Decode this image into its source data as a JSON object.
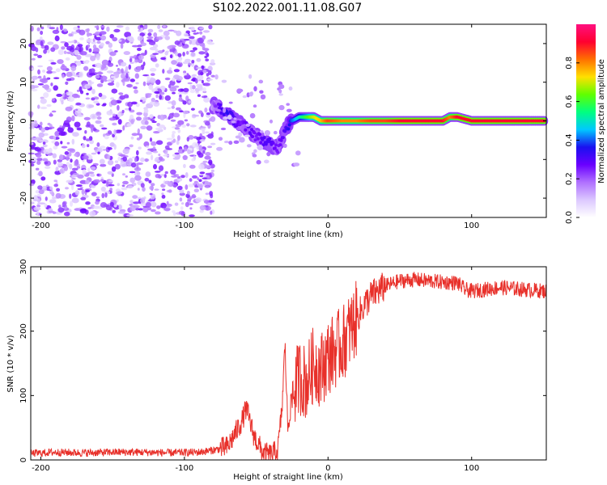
{
  "title": "S102.2022.001.11.08.G07",
  "chart_data": [
    {
      "type": "heatmap",
      "xlabel": "Height of straight line (km)",
      "ylabel": "Frequency (Hz)",
      "xlim": [
        -207,
        152
      ],
      "ylim": [
        -25,
        25
      ],
      "xticks": [
        -200,
        -100,
        0,
        100
      ],
      "yticks": [
        -20,
        -10,
        0,
        10,
        20
      ],
      "grid": false,
      "colorbar": {
        "label": "Normalized spectral amplitude",
        "range": [
          0.0,
          1.0
        ],
        "ticks": [
          "0.0",
          "0.2",
          "0.4",
          "0.6",
          "0.8"
        ],
        "colormap": [
          "#ffffff",
          "#dcc8ff",
          "#b070ff",
          "#6a00ff",
          "#1a10f0",
          "#00c8ff",
          "#00ff80",
          "#60ff00",
          "#ffe000",
          "#ff7000",
          "#ff0030",
          "#ff1080"
        ]
      },
      "ridge": {
        "x": [
          -80,
          -75,
          -70,
          -65,
          -60,
          -55,
          -50,
          -45,
          -40,
          -35,
          -30,
          -25,
          -20,
          -15,
          -10,
          -5,
          0,
          10,
          20,
          30,
          40,
          50,
          60,
          70,
          80,
          85,
          90,
          100,
          110,
          120,
          130,
          140,
          152
        ],
        "frequency": [
          4,
          3,
          2,
          0,
          -1,
          -2,
          -4,
          -5,
          -6,
          -7,
          -2,
          0,
          1,
          1,
          1,
          0,
          0,
          0,
          0,
          0,
          0,
          0,
          0,
          0,
          0,
          1,
          1,
          0,
          0,
          0,
          0,
          0,
          0
        ],
        "amplitude": [
          0.2,
          0.3,
          0.35,
          0.3,
          0.25,
          0.3,
          0.25,
          0.3,
          0.3,
          0.25,
          0.3,
          0.4,
          0.5,
          0.6,
          0.7,
          0.75,
          0.85,
          0.8,
          0.8,
          0.85,
          0.85,
          0.9,
          0.9,
          0.9,
          0.9,
          0.8,
          0.9,
          0.9,
          0.9,
          0.9,
          0.9,
          0.9,
          0.9
        ]
      },
      "noise_region_x": [
        -207,
        -80
      ]
    },
    {
      "type": "line",
      "xlabel": "Height of straight line (km)",
      "ylabel": "SNR (10 * v/v)",
      "xlim": [
        -207,
        152
      ],
      "ylim": [
        0,
        300
      ],
      "xticks": [
        -200,
        -100,
        0,
        100
      ],
      "yticks": [
        0,
        100,
        200,
        300
      ],
      "grid": false,
      "series": [
        {
          "color": "#e8302a",
          "x": [
            -207,
            -190,
            -170,
            -150,
            -130,
            -110,
            -90,
            -80,
            -70,
            -65,
            -60,
            -57,
            -55,
            -52,
            -50,
            -45,
            -40,
            -35,
            -32,
            -30,
            -28,
            -25,
            -20,
            -15,
            -10,
            -5,
            0,
            5,
            10,
            15,
            20,
            25,
            30,
            40,
            50,
            60,
            70,
            80,
            90,
            95,
            100,
            110,
            120,
            130,
            140,
            152
          ],
          "y": [
            10,
            12,
            11,
            12,
            12,
            11,
            12,
            15,
            20,
            40,
            60,
            80,
            65,
            40,
            30,
            10,
            8,
            15,
            80,
            180,
            50,
            100,
            130,
            120,
            150,
            140,
            160,
            170,
            180,
            200,
            220,
            240,
            255,
            270,
            278,
            280,
            278,
            276,
            275,
            265,
            262,
            265,
            268,
            266,
            264,
            262
          ]
        }
      ]
    }
  ]
}
